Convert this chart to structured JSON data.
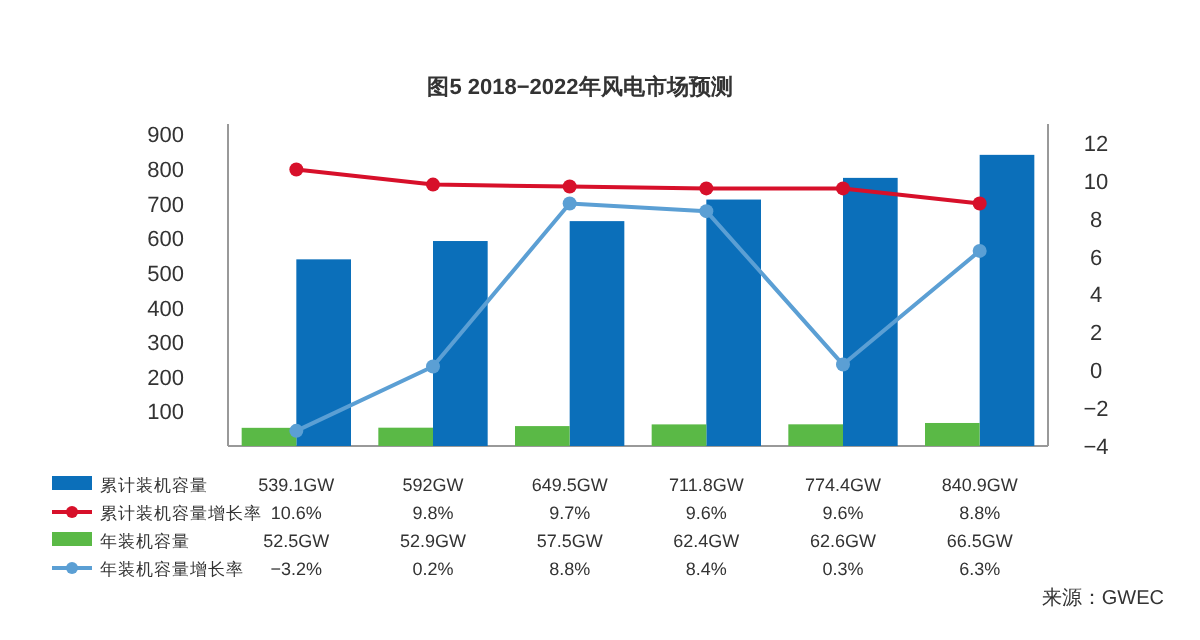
{
  "chart_data": {
    "type": "bar",
    "title": "图5 2018−2022年风电市场预测",
    "categories": [
      null,
      null,
      null,
      null,
      null,
      null
    ],
    "series": [
      {
        "name": "累计装机容量",
        "color": "#0b6fba",
        "values": [
          539.1,
          592,
          649.5,
          711.8,
          774.4,
          840.9
        ],
        "value_labels": [
          "539.1GW",
          "592GW",
          "649.5GW",
          "711.8GW",
          "774.4GW",
          "840.9GW"
        ]
      },
      {
        "name": "累计装机容量增长率",
        "type": "line",
        "axis": "y2",
        "color": "#d7102a",
        "marker": "circle",
        "values": [
          10.6,
          9.8,
          9.7,
          9.6,
          9.6,
          8.8
        ],
        "value_labels": [
          "10.6%",
          "9.8%",
          "9.7%",
          "9.6%",
          "9.6%",
          "8.8%"
        ]
      },
      {
        "name": "年装机容量",
        "color": "#5ab946",
        "values": [
          52.5,
          52.9,
          57.5,
          62.4,
          62.6,
          66.5
        ],
        "value_labels": [
          "52.5GW",
          "52.9GW",
          "57.5GW",
          "62.4GW",
          "62.6GW",
          "66.5GW"
        ]
      },
      {
        "name": "年装机容量增长率",
        "type": "line",
        "axis": "y2",
        "color": "#5b9fd4",
        "marker": "circle",
        "values": [
          -3.2,
          0.2,
          8.8,
          8.4,
          0.3,
          6.3
        ],
        "value_labels": [
          "−3.2%",
          "0.2%",
          "8.8%",
          "8.4%",
          "0.3%",
          "6.3%"
        ]
      }
    ],
    "ylim": [
      0,
      930
    ],
    "yticks": [
      100,
      200,
      300,
      400,
      500,
      600,
      700,
      800,
      900
    ],
    "y2lim": [
      -4,
      13
    ],
    "y2ticks": [
      -4,
      -2,
      0,
      2,
      4,
      6,
      8,
      10,
      12
    ],
    "legend": "bottom",
    "annotations": [
      "来源：GWEC"
    ]
  }
}
